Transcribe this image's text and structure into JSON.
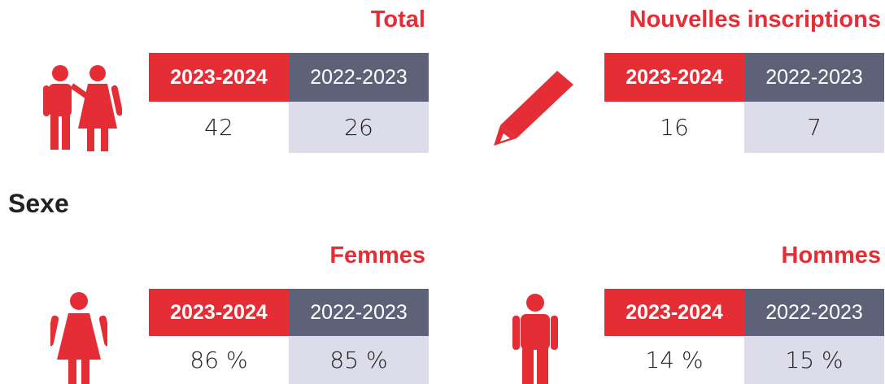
{
  "panels": [
    {
      "title": "Total",
      "headers": [
        "2023-2024",
        "2022-2023"
      ],
      "values": [
        "42",
        "26"
      ]
    },
    {
      "title": "Nouvelles inscriptions",
      "headers": [
        "2023-2024",
        "2022-2023"
      ],
      "values": [
        "16",
        "7"
      ]
    },
    {
      "title": "Femmes",
      "headers": [
        "2023-2024",
        "2022-2023"
      ],
      "values": [
        "86 %",
        "85 %"
      ]
    },
    {
      "title": "Hommes",
      "headers": [
        "2023-2024",
        "2022-2023"
      ],
      "values": [
        "14 %",
        "15 %"
      ]
    }
  ],
  "section": "Sexe"
}
